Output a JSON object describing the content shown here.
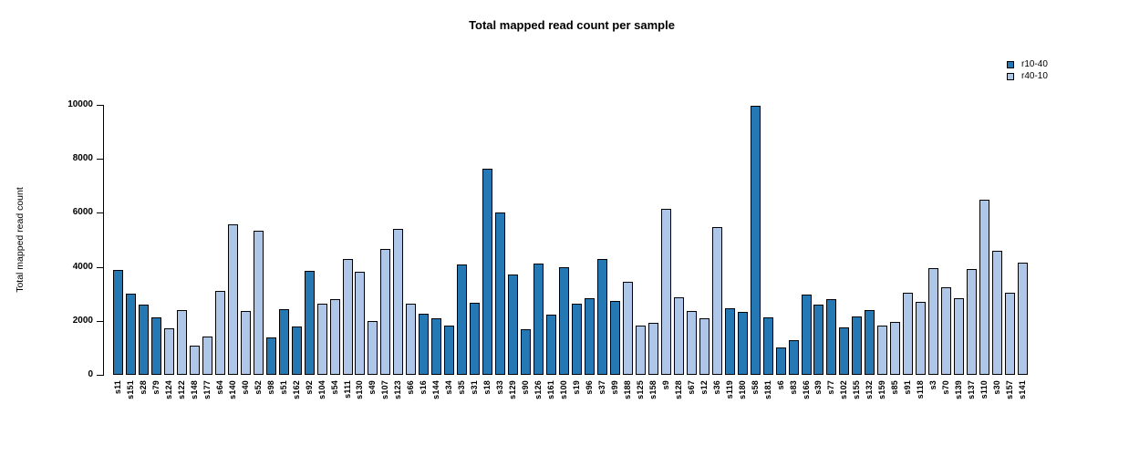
{
  "title": "Total mapped read count per sample",
  "legend": {
    "entries": [
      {
        "label": "r10-40",
        "color": "#2478b4"
      },
      {
        "label": "r40-10",
        "color": "#aec7e8"
      }
    ]
  },
  "chart_data": {
    "type": "bar",
    "title": "Total mapped read count per sample",
    "xlabel": "",
    "ylabel": "Total mapped read count",
    "ylim": [
      0,
      10000
    ],
    "yticks": [
      0,
      2000,
      4000,
      6000,
      8000,
      10000
    ],
    "grid": false,
    "legend_position": "top-right",
    "series_colors": {
      "r10-40": "#2478b4",
      "r40-10": "#aec7e8"
    },
    "samples": [
      {
        "name": "s11",
        "group": "r10-40",
        "value": 3890
      },
      {
        "name": "s151",
        "group": "r10-40",
        "value": 3000
      },
      {
        "name": "s28",
        "group": "r10-40",
        "value": 2600
      },
      {
        "name": "s79",
        "group": "r10-40",
        "value": 2120
      },
      {
        "name": "s124",
        "group": "r40-10",
        "value": 1740
      },
      {
        "name": "s122",
        "group": "r40-10",
        "value": 2410
      },
      {
        "name": "s148",
        "group": "r40-10",
        "value": 1090
      },
      {
        "name": "s177",
        "group": "r40-10",
        "value": 1430
      },
      {
        "name": "s64",
        "group": "r40-10",
        "value": 3120
      },
      {
        "name": "s140",
        "group": "r40-10",
        "value": 5570
      },
      {
        "name": "s40",
        "group": "r40-10",
        "value": 2350
      },
      {
        "name": "s52",
        "group": "r40-10",
        "value": 5350
      },
      {
        "name": "s98",
        "group": "r10-40",
        "value": 1370
      },
      {
        "name": "s51",
        "group": "r10-40",
        "value": 2440
      },
      {
        "name": "s162",
        "group": "r10-40",
        "value": 1780
      },
      {
        "name": "s92",
        "group": "r10-40",
        "value": 3860
      },
      {
        "name": "s104",
        "group": "r40-10",
        "value": 2650
      },
      {
        "name": "s54",
        "group": "r40-10",
        "value": 2800
      },
      {
        "name": "s111",
        "group": "r40-10",
        "value": 4300
      },
      {
        "name": "s130",
        "group": "r40-10",
        "value": 3830
      },
      {
        "name": "s49",
        "group": "r40-10",
        "value": 2010
      },
      {
        "name": "s107",
        "group": "r40-10",
        "value": 4670
      },
      {
        "name": "s123",
        "group": "r40-10",
        "value": 5400
      },
      {
        "name": "s66",
        "group": "r40-10",
        "value": 2630
      },
      {
        "name": "s16",
        "group": "r10-40",
        "value": 2280
      },
      {
        "name": "s144",
        "group": "r10-40",
        "value": 2110
      },
      {
        "name": "s34",
        "group": "r10-40",
        "value": 1830
      },
      {
        "name": "s35",
        "group": "r10-40",
        "value": 4090
      },
      {
        "name": "s31",
        "group": "r10-40",
        "value": 2660
      },
      {
        "name": "s18",
        "group": "r10-40",
        "value": 7650
      },
      {
        "name": "s33",
        "group": "r10-40",
        "value": 6030
      },
      {
        "name": "s129",
        "group": "r10-40",
        "value": 3720
      },
      {
        "name": "s90",
        "group": "r10-40",
        "value": 1700
      },
      {
        "name": "s126",
        "group": "r10-40",
        "value": 4130
      },
      {
        "name": "s161",
        "group": "r10-40",
        "value": 2230
      },
      {
        "name": "s100",
        "group": "r10-40",
        "value": 3980
      },
      {
        "name": "s19",
        "group": "r10-40",
        "value": 2630
      },
      {
        "name": "s96",
        "group": "r10-40",
        "value": 2850
      },
      {
        "name": "s37",
        "group": "r10-40",
        "value": 4280
      },
      {
        "name": "s99",
        "group": "r10-40",
        "value": 2740
      },
      {
        "name": "s188",
        "group": "r40-10",
        "value": 3460
      },
      {
        "name": "s125",
        "group": "r40-10",
        "value": 1830
      },
      {
        "name": "s158",
        "group": "r40-10",
        "value": 1920
      },
      {
        "name": "s9",
        "group": "r40-10",
        "value": 6160
      },
      {
        "name": "s128",
        "group": "r40-10",
        "value": 2860
      },
      {
        "name": "s67",
        "group": "r40-10",
        "value": 2380
      },
      {
        "name": "s12",
        "group": "r40-10",
        "value": 2100
      },
      {
        "name": "s36",
        "group": "r40-10",
        "value": 5490
      },
      {
        "name": "s119",
        "group": "r10-40",
        "value": 2480
      },
      {
        "name": "s180",
        "group": "r10-40",
        "value": 2330
      },
      {
        "name": "s58",
        "group": "r10-40",
        "value": 9950
      },
      {
        "name": "s181",
        "group": "r10-40",
        "value": 2140
      },
      {
        "name": "s6",
        "group": "r10-40",
        "value": 1000
      },
      {
        "name": "s83",
        "group": "r10-40",
        "value": 1270
      },
      {
        "name": "s166",
        "group": "r10-40",
        "value": 2980
      },
      {
        "name": "s39",
        "group": "r10-40",
        "value": 2600
      },
      {
        "name": "s77",
        "group": "r10-40",
        "value": 2790
      },
      {
        "name": "s102",
        "group": "r10-40",
        "value": 1750
      },
      {
        "name": "s155",
        "group": "r10-40",
        "value": 2170
      },
      {
        "name": "s132",
        "group": "r10-40",
        "value": 2400
      },
      {
        "name": "s159",
        "group": "r40-10",
        "value": 1830
      },
      {
        "name": "s85",
        "group": "r40-10",
        "value": 1950
      },
      {
        "name": "s91",
        "group": "r40-10",
        "value": 3040
      },
      {
        "name": "s118",
        "group": "r40-10",
        "value": 2710
      },
      {
        "name": "s3",
        "group": "r40-10",
        "value": 3950
      },
      {
        "name": "s70",
        "group": "r40-10",
        "value": 3250
      },
      {
        "name": "s139",
        "group": "r40-10",
        "value": 2830
      },
      {
        "name": "s137",
        "group": "r40-10",
        "value": 3910
      },
      {
        "name": "s110",
        "group": "r40-10",
        "value": 6500
      },
      {
        "name": "s30",
        "group": "r40-10",
        "value": 4590
      },
      {
        "name": "s157",
        "group": "r40-10",
        "value": 3040
      },
      {
        "name": "s141",
        "group": "r40-10",
        "value": 4150
      }
    ]
  }
}
